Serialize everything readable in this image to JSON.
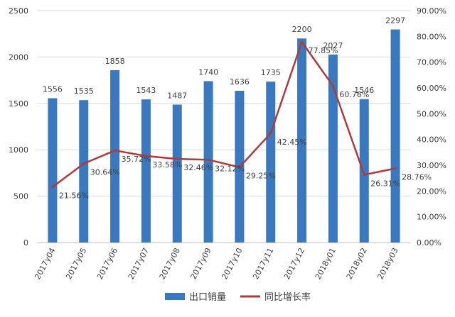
{
  "chart_data": {
    "type": "bar",
    "categories": [
      "2017y04",
      "2017y05",
      "2017y06",
      "2017y07",
      "2017y08",
      "2017y09",
      "2017y10",
      "2017y11",
      "2017y12",
      "2018y01",
      "2018y02",
      "2018y03"
    ],
    "series": [
      {
        "name": "出口销量",
        "type": "bar",
        "axis": "left",
        "color": "#3a78c0",
        "values": [
          1556,
          1535,
          1858,
          1543,
          1487,
          1740,
          1636,
          1735,
          2200,
          2027,
          1546,
          2297
        ],
        "labels": [
          "1556",
          "1535",
          "1858",
          "1543",
          "1487",
          "1740",
          "1636",
          "1735",
          "2200",
          "2027",
          "1546",
          "2297"
        ]
      },
      {
        "name": "同比增长率",
        "type": "line",
        "axis": "right",
        "color": "#b03a3a",
        "values": [
          21.56,
          30.64,
          35.72,
          33.58,
          32.46,
          32.12,
          29.25,
          42.45,
          77.85,
          60.76,
          26.31,
          28.76
        ],
        "labels": [
          "21.56%",
          "30.64%",
          "35.72%",
          "33.58%",
          "32.46%",
          "32.12%",
          "29.25%",
          "42.45%",
          "77.85%",
          "60.76%",
          "26.31%",
          "28.76%"
        ]
      }
    ],
    "left_axis": {
      "ylim": [
        0,
        2500
      ],
      "ticks": [
        "0",
        "500",
        "1000",
        "1500",
        "2000",
        "2500"
      ]
    },
    "right_axis": {
      "ylim": [
        0,
        90
      ],
      "ticks": [
        "0.00%",
        "10.00%",
        "20.00%",
        "30.00%",
        "40.00%",
        "50.00%",
        "60.00%",
        "70.00%",
        "80.00%",
        "90.00%"
      ]
    },
    "grid": true,
    "legend": "bottom"
  }
}
